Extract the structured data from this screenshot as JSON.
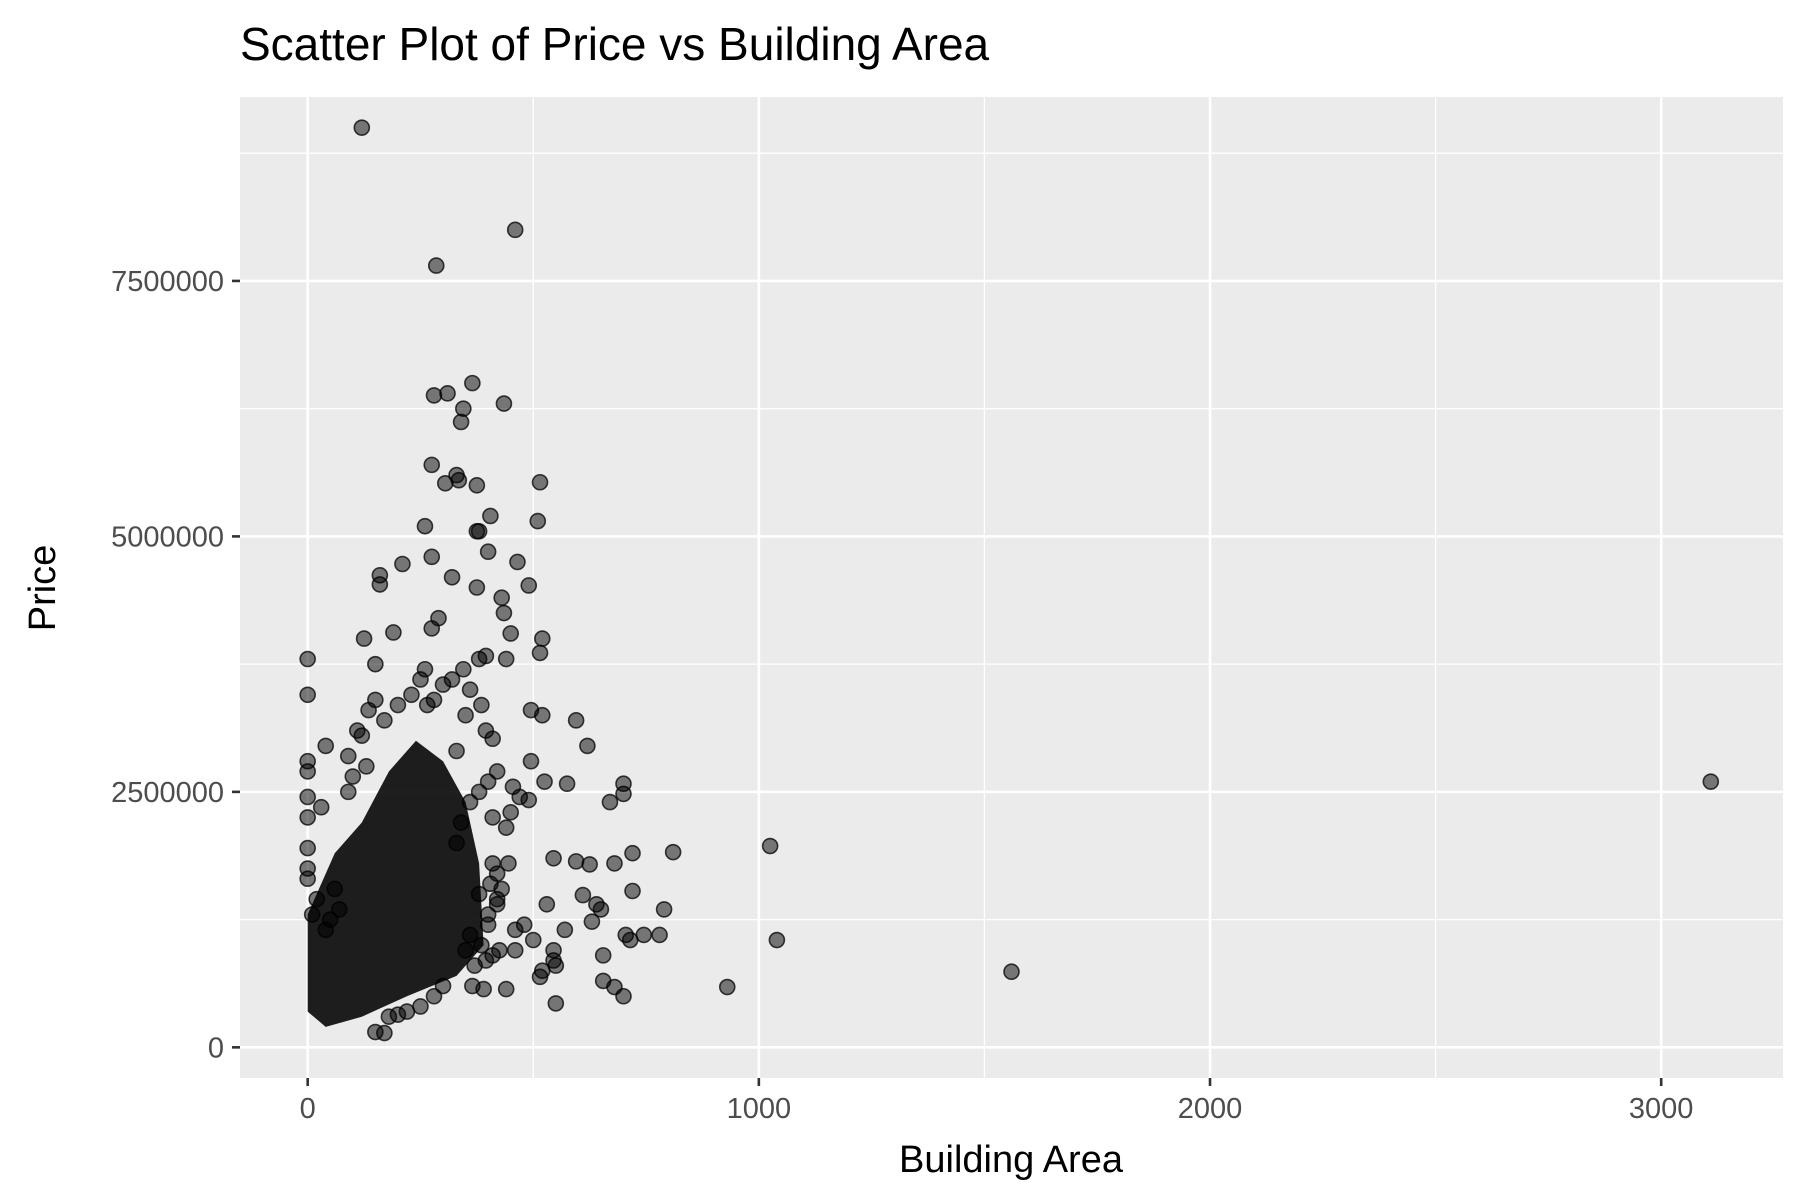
{
  "chart_data": {
    "type": "scatter",
    "title": "Scatter Plot of Price vs Building Area",
    "xlabel": "Building Area",
    "ylabel": "Price",
    "xlim": [
      -150,
      3270
    ],
    "ylim": [
      -300000,
      9300000
    ],
    "x_ticks": [
      0,
      1000,
      2000,
      3000
    ],
    "x_tick_labels": [
      "0",
      "1000",
      "2000",
      "3000"
    ],
    "x_minor_ticks": [
      500,
      1500,
      2500
    ],
    "y_ticks": [
      0,
      2500000,
      5000000,
      7500000
    ],
    "y_tick_labels": [
      "0",
      "2500000",
      "5000000",
      "7500000"
    ],
    "y_minor_ticks": [
      1250000,
      3750000,
      6250000,
      8750000
    ],
    "grid": true,
    "point_color": "#000000",
    "point_alpha": 0.5,
    "panel_background": "#ebebeb",
    "grid_color": "#ffffff",
    "points": [
      [
        120,
        9000000
      ],
      [
        460,
        8000000
      ],
      [
        285,
        7650000
      ],
      [
        365,
        6500000
      ],
      [
        310,
        6400000
      ],
      [
        280,
        6380000
      ],
      [
        435,
        6300000
      ],
      [
        345,
        6250000
      ],
      [
        340,
        6120000
      ],
      [
        275,
        5700000
      ],
      [
        330,
        5600000
      ],
      [
        335,
        5550000
      ],
      [
        305,
        5520000
      ],
      [
        375,
        5500000
      ],
      [
        515,
        5530000
      ],
      [
        510,
        5150000
      ],
      [
        260,
        5100000
      ],
      [
        375,
        5050000
      ],
      [
        380,
        5050000
      ],
      [
        405,
        5200000
      ],
      [
        400,
        4850000
      ],
      [
        465,
        4750000
      ],
      [
        275,
        4800000
      ],
      [
        210,
        4730000
      ],
      [
        160,
        4620000
      ],
      [
        320,
        4600000
      ],
      [
        160,
        4530000
      ],
      [
        375,
        4500000
      ],
      [
        490,
        4520000
      ],
      [
        430,
        4400000
      ],
      [
        290,
        4200000
      ],
      [
        435,
        4250000
      ],
      [
        275,
        4100000
      ],
      [
        450,
        4050000
      ],
      [
        125,
        4000000
      ],
      [
        520,
        4000000
      ],
      [
        190,
        4060000
      ],
      [
        515,
        3860000
      ],
      [
        0,
        3800000
      ],
      [
        440,
        3800000
      ],
      [
        395,
        3830000
      ],
      [
        345,
        3700000
      ],
      [
        260,
        3700000
      ],
      [
        150,
        3750000
      ],
      [
        0,
        3450000
      ],
      [
        495,
        3300000
      ],
      [
        520,
        3250000
      ],
      [
        595,
        3200000
      ],
      [
        110,
        3100000
      ],
      [
        265,
        3350000
      ],
      [
        620,
        2950000
      ],
      [
        40,
        2950000
      ],
      [
        90,
        2850000
      ],
      [
        495,
        2800000
      ],
      [
        330,
        2900000
      ],
      [
        130,
        2750000
      ],
      [
        0,
        2800000
      ],
      [
        0,
        2700000
      ],
      [
        525,
        2600000
      ],
      [
        575,
        2580000
      ],
      [
        700,
        2580000
      ],
      [
        700,
        2480000
      ],
      [
        3110,
        2600000
      ],
      [
        455,
        2550000
      ],
      [
        0,
        2450000
      ],
      [
        470,
        2450000
      ],
      [
        670,
        2400000
      ],
      [
        490,
        2420000
      ],
      [
        30,
        2350000
      ],
      [
        0,
        2250000
      ],
      [
        450,
        2300000
      ],
      [
        410,
        2250000
      ],
      [
        440,
        2150000
      ],
      [
        1025,
        1970000
      ],
      [
        810,
        1910000
      ],
      [
        720,
        1900000
      ],
      [
        545,
        1850000
      ],
      [
        595,
        1820000
      ],
      [
        625,
        1790000
      ],
      [
        680,
        1800000
      ],
      [
        445,
        1800000
      ],
      [
        420,
        1700000
      ],
      [
        0,
        1950000
      ],
      [
        0,
        1750000
      ],
      [
        0,
        1650000
      ],
      [
        720,
        1530000
      ],
      [
        610,
        1490000
      ],
      [
        530,
        1400000
      ],
      [
        640,
        1400000
      ],
      [
        420,
        1450000
      ],
      [
        790,
        1350000
      ],
      [
        650,
        1350000
      ],
      [
        630,
        1230000
      ],
      [
        570,
        1150000
      ],
      [
        460,
        1150000
      ],
      [
        400,
        1200000
      ],
      [
        745,
        1100000
      ],
      [
        705,
        1100000
      ],
      [
        715,
        1050000
      ],
      [
        780,
        1100000
      ],
      [
        1040,
        1050000
      ],
      [
        480,
        1200000
      ],
      [
        545,
        950000
      ],
      [
        655,
        900000
      ],
      [
        460,
        950000
      ],
      [
        500,
        1050000
      ],
      [
        425,
        950000
      ],
      [
        1560,
        740000
      ],
      [
        550,
        800000
      ],
      [
        545,
        850000
      ],
      [
        520,
        750000
      ],
      [
        515,
        690000
      ],
      [
        655,
        650000
      ],
      [
        680,
        590000
      ],
      [
        700,
        500000
      ],
      [
        930,
        590000
      ],
      [
        550,
        430000
      ],
      [
        390,
        570000
      ],
      [
        440,
        570000
      ],
      [
        365,
        600000
      ],
      [
        150,
        150000
      ],
      [
        170,
        140000
      ],
      [
        410,
        1800000
      ],
      [
        405,
        1600000
      ],
      [
        420,
        1400000
      ],
      [
        430,
        1550000
      ],
      [
        380,
        1500000
      ],
      [
        400,
        1300000
      ],
      [
        385,
        1000000
      ],
      [
        410,
        900000
      ],
      [
        370,
        800000
      ],
      [
        395,
        850000
      ],
      [
        350,
        950000
      ],
      [
        360,
        1100000
      ],
      [
        300,
        600000
      ],
      [
        280,
        500000
      ],
      [
        250,
        400000
      ],
      [
        220,
        350000
      ],
      [
        200,
        320000
      ],
      [
        180,
        300000
      ],
      [
        60,
        1550000
      ],
      [
        70,
        1350000
      ],
      [
        50,
        1250000
      ],
      [
        40,
        1150000
      ],
      [
        20,
        1450000
      ],
      [
        10,
        1300000
      ],
      [
        380,
        3800000
      ],
      [
        360,
        3500000
      ],
      [
        385,
        3350000
      ],
      [
        350,
        3250000
      ],
      [
        395,
        3100000
      ],
      [
        410,
        3020000
      ],
      [
        320,
        3600000
      ],
      [
        300,
        3550000
      ],
      [
        280,
        3400000
      ],
      [
        250,
        3600000
      ],
      [
        230,
        3450000
      ],
      [
        200,
        3350000
      ],
      [
        170,
        3200000
      ],
      [
        150,
        3400000
      ],
      [
        135,
        3300000
      ],
      [
        120,
        3050000
      ],
      [
        100,
        2650000
      ],
      [
        90,
        2500000
      ],
      [
        420,
        2700000
      ],
      [
        400,
        2600000
      ],
      [
        380,
        2500000
      ],
      [
        360,
        2400000
      ],
      [
        340,
        2200000
      ],
      [
        330,
        2000000
      ]
    ]
  }
}
